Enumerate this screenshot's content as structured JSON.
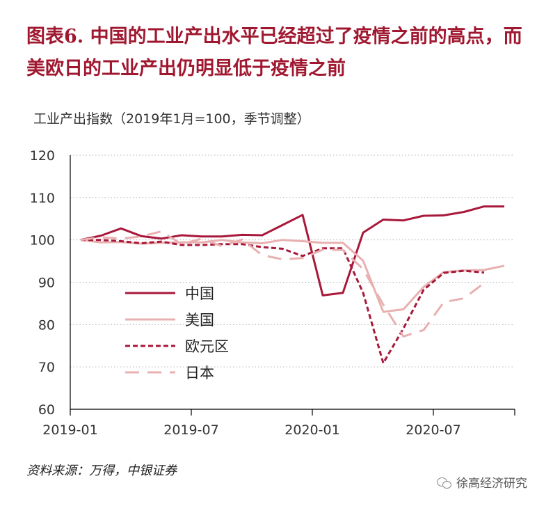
{
  "header": {
    "title": "图表6.  中国的工业产出水平已经超过了疫情之前的高点，而美欧日的工业产出仍明显低于疫情之前",
    "subtitle": "工业产出指数（2019年1月=100，季节调整）"
  },
  "footer": {
    "source": "资料来源：万得，中银证券",
    "watermark": "徐高经济研究",
    "watermark_icon": "wechat-icon"
  },
  "chart_data": {
    "type": "line",
    "title": "",
    "ylabel": "工业产出指数（2019年1月=100，季节调整）",
    "xlabel": "",
    "ylim": [
      60,
      120
    ],
    "yticks": [
      60,
      70,
      80,
      90,
      100,
      110,
      120
    ],
    "x_start": "2019-01",
    "xticks": [
      "2019-01",
      "2019-07",
      "2020-01",
      "2020-07"
    ],
    "grid": "horizontal dotted",
    "legend_position": "left, inside plot",
    "series": [
      {
        "name": "中国",
        "color": "#a8183a",
        "style": "solid",
        "values": [
          100.0,
          101.0,
          102.7,
          100.9,
          100.3,
          101.1,
          100.8,
          100.8,
          101.2,
          101.1,
          103.5,
          105.9,
          86.9,
          87.5,
          101.7,
          104.8,
          104.6,
          105.7,
          105.8,
          106.6,
          107.9,
          107.9
        ]
      },
      {
        "name": "美国",
        "color": "#e8b0b0",
        "style": "solid",
        "values": [
          100.0,
          99.4,
          99.5,
          99.1,
          99.3,
          99.4,
          99.4,
          100.0,
          99.4,
          99.2,
          100.0,
          99.7,
          99.3,
          99.3,
          95.1,
          83.0,
          83.6,
          88.9,
          92.4,
          92.8,
          92.9,
          93.9
        ]
      },
      {
        "name": "欧元区",
        "color": "#a8183a",
        "style": "dashed",
        "values": [
          100.0,
          100.0,
          99.7,
          99.2,
          99.6,
          98.8,
          98.8,
          99.0,
          99.0,
          98.3,
          97.9,
          96.2,
          98.0,
          98.0,
          87.5,
          70.9,
          79.1,
          88.2,
          92.2,
          92.7,
          92.3
        ]
      },
      {
        "name": "日本",
        "color": "#e8b0b0",
        "style": "longdash",
        "values": [
          100.0,
          100.6,
          100.3,
          100.8,
          102.0,
          99.0,
          100.3,
          98.5,
          100.1,
          96.4,
          95.4,
          95.7,
          97.7,
          97.6,
          93.1,
          84.7,
          77.2,
          78.7,
          85.3,
          86.2,
          89.8
        ]
      }
    ]
  }
}
